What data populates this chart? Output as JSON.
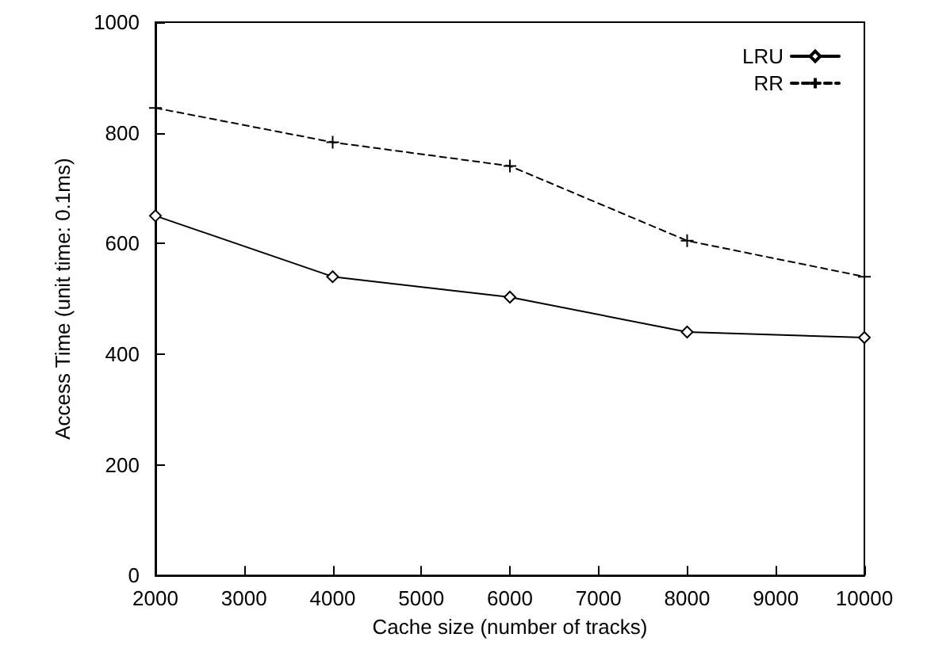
{
  "chart_data": {
    "type": "line",
    "xlabel": "Cache size (number of tracks)",
    "ylabel": "Access Time (unit time: 0.1ms)",
    "x": [
      2000,
      4000,
      6000,
      8000,
      10000
    ],
    "series": [
      {
        "name": "LRU",
        "color": "#000000",
        "values": [
          650,
          540,
          503,
          440,
          430
        ],
        "marker": "diamond",
        "line_style": "solid"
      },
      {
        "name": "RR",
        "color": "#000000",
        "values": [
          845,
          783,
          740,
          605,
          540
        ],
        "marker": "cross",
        "line_style": "dashed"
      }
    ],
    "xlim": [
      2000,
      10000
    ],
    "xticks": [
      2000,
      3000,
      4000,
      5000,
      6000,
      7000,
      8000,
      9000,
      10000
    ],
    "ylim": [
      0,
      1000
    ],
    "yticks": [
      0,
      200,
      400,
      600,
      800,
      1000
    ],
    "grid": false,
    "legend": "top right"
  }
}
